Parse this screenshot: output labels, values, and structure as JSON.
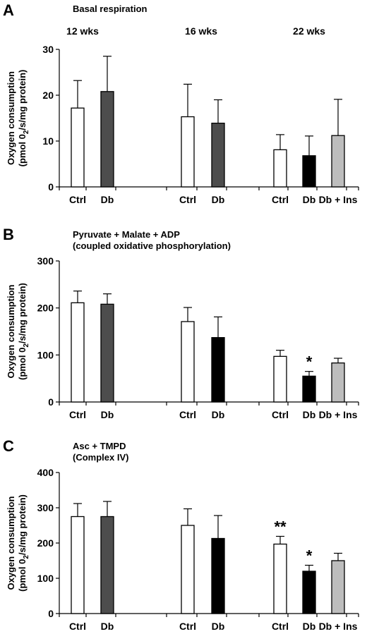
{
  "ylabel_main": "Oxygen consumption",
  "ylabel_unit_prefix": "(pmol 0",
  "ylabel_unit_sub": "2",
  "ylabel_unit_suffix": "/s/mg protein)",
  "colors": {
    "ctrl": "#ffffff",
    "db12": "#4d4d4d",
    "db": "#000000",
    "dbins": "#bdbdbd",
    "axis": "#000000"
  },
  "chart_data": [
    {
      "type": "bar",
      "panel_letter": "A",
      "title": "Basal respiration",
      "subtitle": "",
      "group_labels": [
        "12 wks",
        "16 wks",
        "22 wks"
      ],
      "categories": [
        "Ctrl",
        "Db",
        "Ctrl",
        "Db",
        "Ctrl",
        "Db",
        "Db + Ins"
      ],
      "values": [
        17.2,
        20.8,
        15.3,
        13.9,
        8.1,
        6.8,
        11.2
      ],
      "errors": [
        6.0,
        7.7,
        7.1,
        5.1,
        3.3,
        4.3,
        7.9
      ],
      "significance": [
        "",
        "",
        "",
        "",
        "",
        "",
        ""
      ],
      "ylim": [
        0,
        30
      ],
      "yticks": [
        0,
        10,
        20,
        30
      ],
      "ylabel": "Oxygen consumption (pmol 02/s/mg protein)"
    },
    {
      "type": "bar",
      "panel_letter": "B",
      "title": "Pyruvate + Malate + ADP",
      "subtitle": "(coupled oxidative phosphorylation)",
      "group_labels": [],
      "categories": [
        "Ctrl",
        "Db",
        "Ctrl",
        "Db",
        "Ctrl",
        "Db",
        "Db + Ins"
      ],
      "values": [
        211,
        208,
        171,
        137,
        97,
        55,
        83
      ],
      "errors": [
        25,
        22,
        30,
        44,
        13,
        10,
        10
      ],
      "significance": [
        "",
        "",
        "",
        "",
        "",
        "*",
        ""
      ],
      "ylim": [
        0,
        300
      ],
      "yticks": [
        0,
        100,
        200,
        300
      ],
      "ylabel": "Oxygen consumption (pmol 02/s/mg protein)"
    },
    {
      "type": "bar",
      "panel_letter": "C",
      "title": "Asc + TMPD",
      "subtitle": "(Complex IV)",
      "group_labels": [],
      "categories": [
        "Ctrl",
        "Db",
        "Ctrl",
        "Db",
        "Ctrl",
        "Db",
        "Db + Ins"
      ],
      "values": [
        275,
        275,
        250,
        213,
        197,
        120,
        150
      ],
      "errors": [
        37,
        43,
        47,
        65,
        22,
        17,
        21
      ],
      "significance": [
        "",
        "",
        "",
        "",
        "**",
        "*",
        ""
      ],
      "ylim": [
        0,
        400
      ],
      "yticks": [
        0,
        100,
        200,
        300,
        400
      ],
      "ylabel": "Oxygen consumption (pmol 02/s/mg protein)"
    }
  ]
}
